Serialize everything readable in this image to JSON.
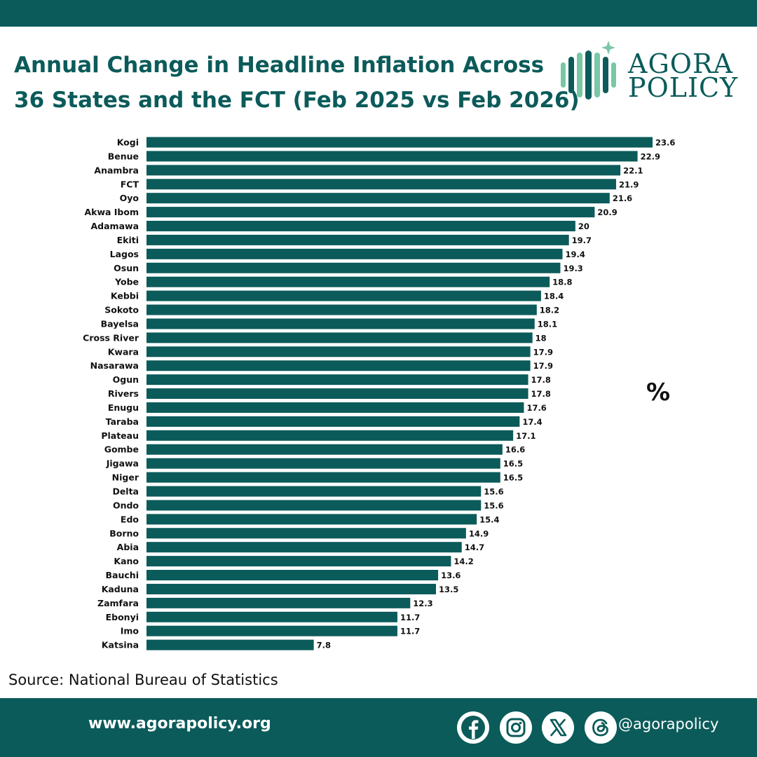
{
  "header": {
    "title_line1": "Annual Change in Headline Inflation Across",
    "title_line2": "36 States and the FCT (Feb 2025 vs Feb 2026)"
  },
  "logo": {
    "line1": "AGORA",
    "line2": "POLICY",
    "icon": "agora-bars-star-icon"
  },
  "colors": {
    "brand": "#0b5b5a",
    "bar": "#0b5b5a",
    "logo_light": "#79c7a6"
  },
  "chart_data": {
    "type": "bar",
    "orientation": "horizontal",
    "categories": [
      "Kogi",
      "Benue",
      "Anambra",
      "FCT",
      "Oyo",
      "Akwa Ibom",
      "Adamawa",
      "Ekiti",
      "Lagos",
      "Osun",
      "Yobe",
      "Kebbi",
      "Sokoto",
      "Bayelsa",
      "Cross River",
      "Kwara",
      "Nasarawa",
      "Ogun",
      "Rivers",
      "Enugu",
      "Taraba",
      "Plateau",
      "Gombe",
      "Jigawa",
      "Niger",
      "Delta",
      "Ondo",
      "Edo",
      "Borno",
      "Abia",
      "Kano",
      "Bauchi",
      "Kaduna",
      "Zamfara",
      "Ebonyi",
      "Imo",
      "Katsina"
    ],
    "values": [
      23.6,
      22.9,
      22.1,
      21.9,
      21.6,
      20.9,
      20,
      19.7,
      19.4,
      19.3,
      18.8,
      18.4,
      18.2,
      18.1,
      18,
      17.9,
      17.9,
      17.8,
      17.8,
      17.6,
      17.4,
      17.1,
      16.6,
      16.5,
      16.5,
      15.6,
      15.6,
      15.4,
      14.9,
      14.7,
      14.2,
      13.6,
      13.5,
      12.3,
      11.7,
      11.7,
      7.8
    ],
    "labels": [
      "23.6",
      "22.9",
      "22.1",
      "21.9",
      "21.6",
      "20.9",
      "20",
      "19.7",
      "19.4",
      "19.3",
      "18.8",
      "18.4",
      "18.2",
      "18.1",
      "18",
      "17.9",
      "17.9",
      "17.8",
      "17.8",
      "17.6",
      "17.4",
      "17.1",
      "16.6",
      "16.5",
      "16.5",
      "15.6",
      "15.6",
      "15.4",
      "14.9",
      "14.7",
      "14.2",
      "13.6",
      "13.5",
      "12.3",
      "11.7",
      "11.7",
      "7.8"
    ],
    "unit": "%",
    "xlim": [
      0,
      23.6
    ],
    "grid": false,
    "legend": "none"
  },
  "source": "Source: National Bureau of Statistics",
  "footer": {
    "website": "www.agorapolicy.org",
    "handle": "@agorapolicy",
    "icons": [
      "facebook-icon",
      "instagram-icon",
      "x-icon",
      "threads-icon"
    ]
  }
}
